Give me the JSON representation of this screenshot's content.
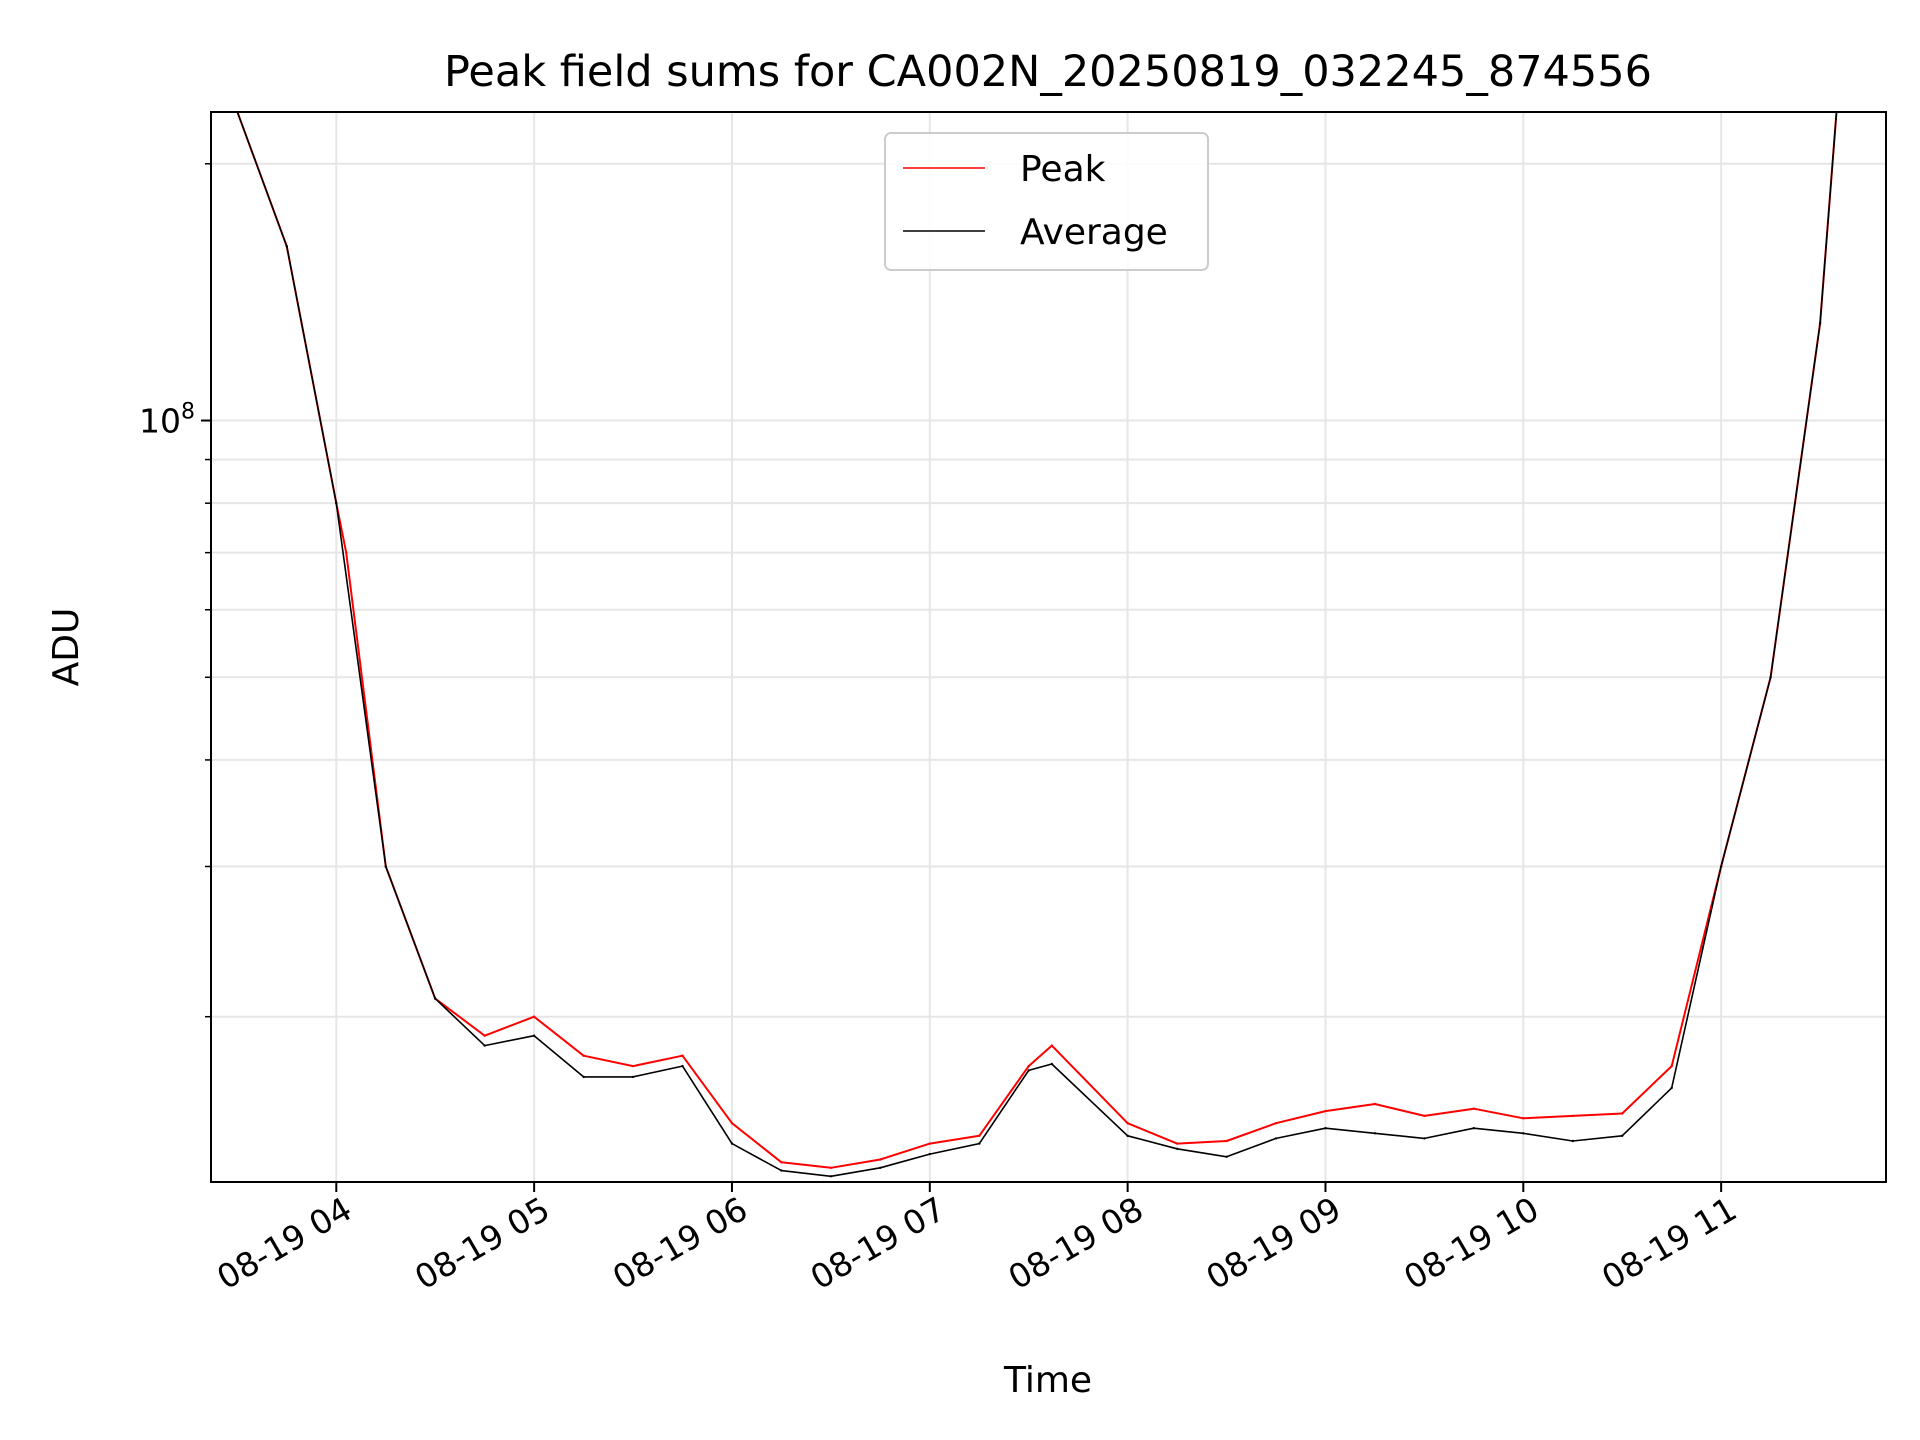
{
  "chart_data": {
    "type": "line",
    "title": "Peak field sums for CA002N_20250819_032245_874556",
    "xlabel": "Time",
    "ylabel": "ADU",
    "x_axis": {
      "kind": "datetime",
      "range": [
        "2025-08-19 03:22",
        "2025-08-19 11:50"
      ],
      "ticks": [
        {
          "value": "2025-08-19 04:00",
          "label": "08-19 04"
        },
        {
          "value": "2025-08-19 05:00",
          "label": "08-19 05"
        },
        {
          "value": "2025-08-19 06:00",
          "label": "08-19 06"
        },
        {
          "value": "2025-08-19 07:00",
          "label": "08-19 07"
        },
        {
          "value": "2025-08-19 08:00",
          "label": "08-19 08"
        },
        {
          "value": "2025-08-19 09:00",
          "label": "08-19 09"
        },
        {
          "value": "2025-08-19 10:00",
          "label": "08-19 10"
        },
        {
          "value": "2025-08-19 11:00",
          "label": "08-19 11"
        }
      ]
    },
    "y_axis": {
      "scale": "log",
      "range": [
        12800000,
        230000000
      ],
      "major_ticks": [
        {
          "value": 100000000,
          "label_base": "10",
          "label_exp": "8"
        }
      ],
      "minor_ticks": [
        20000000,
        30000000,
        40000000,
        50000000,
        60000000,
        70000000,
        80000000,
        90000000,
        200000000
      ]
    },
    "grid": true,
    "legend_position": "top-center",
    "series": [
      {
        "name": "Peak",
        "color": "#ff0000",
        "x": [
          "2025-08-19 03:30",
          "2025-08-19 03:45",
          "2025-08-19 04:00",
          "2025-08-19 04:03",
          "2025-08-19 04:15",
          "2025-08-19 04:30",
          "2025-08-19 04:45",
          "2025-08-19 05:00",
          "2025-08-19 05:15",
          "2025-08-19 05:30",
          "2025-08-19 05:45",
          "2025-08-19 06:00",
          "2025-08-19 06:15",
          "2025-08-19 06:30",
          "2025-08-19 06:45",
          "2025-08-19 07:00",
          "2025-08-19 07:15",
          "2025-08-19 07:30",
          "2025-08-19 07:37",
          "2025-08-19 08:00",
          "2025-08-19 08:15",
          "2025-08-19 08:30",
          "2025-08-19 08:45",
          "2025-08-19 09:00",
          "2025-08-19 09:15",
          "2025-08-19 09:30",
          "2025-08-19 09:45",
          "2025-08-19 10:00",
          "2025-08-19 10:15",
          "2025-08-19 10:30",
          "2025-08-19 10:45",
          "2025-08-19 11:00",
          "2025-08-19 11:15",
          "2025-08-19 11:30",
          "2025-08-19 11:35"
        ],
        "y": [
          230000000,
          160000000,
          80000000,
          70000000,
          30000000,
          21000000,
          19000000,
          20000000,
          18000000,
          17500000,
          18000000,
          15000000,
          13500000,
          13300000,
          13600000,
          14200000,
          14500000,
          17500000,
          18500000,
          15000000,
          14200000,
          14300000,
          15000000,
          15500000,
          15800000,
          15300000,
          15600000,
          15200000,
          15300000,
          15400000,
          17500000,
          30000000,
          50000000,
          130000000,
          230000000
        ]
      },
      {
        "name": "Average",
        "color": "#000000",
        "x": [
          "2025-08-19 03:30",
          "2025-08-19 03:45",
          "2025-08-19 04:00",
          "2025-08-19 04:15",
          "2025-08-19 04:30",
          "2025-08-19 04:45",
          "2025-08-19 05:00",
          "2025-08-19 05:15",
          "2025-08-19 05:30",
          "2025-08-19 05:45",
          "2025-08-19 06:00",
          "2025-08-19 06:15",
          "2025-08-19 06:30",
          "2025-08-19 06:45",
          "2025-08-19 07:00",
          "2025-08-19 07:15",
          "2025-08-19 07:30",
          "2025-08-19 07:37",
          "2025-08-19 08:00",
          "2025-08-19 08:15",
          "2025-08-19 08:30",
          "2025-08-19 08:45",
          "2025-08-19 09:00",
          "2025-08-19 09:15",
          "2025-08-19 09:30",
          "2025-08-19 09:45",
          "2025-08-19 10:00",
          "2025-08-19 10:15",
          "2025-08-19 10:30",
          "2025-08-19 10:45",
          "2025-08-19 11:00",
          "2025-08-19 11:15",
          "2025-08-19 11:30",
          "2025-08-19 11:35"
        ],
        "y": [
          230000000,
          160000000,
          80000000,
          30000000,
          21000000,
          18500000,
          19000000,
          17000000,
          17000000,
          17500000,
          14200000,
          13200000,
          13000000,
          13300000,
          13800000,
          14200000,
          17300000,
          17600000,
          14500000,
          14000000,
          13700000,
          14400000,
          14800000,
          14600000,
          14400000,
          14800000,
          14600000,
          14300000,
          14500000,
          16500000,
          30000000,
          50000000,
          130000000,
          230000000
        ]
      }
    ]
  }
}
